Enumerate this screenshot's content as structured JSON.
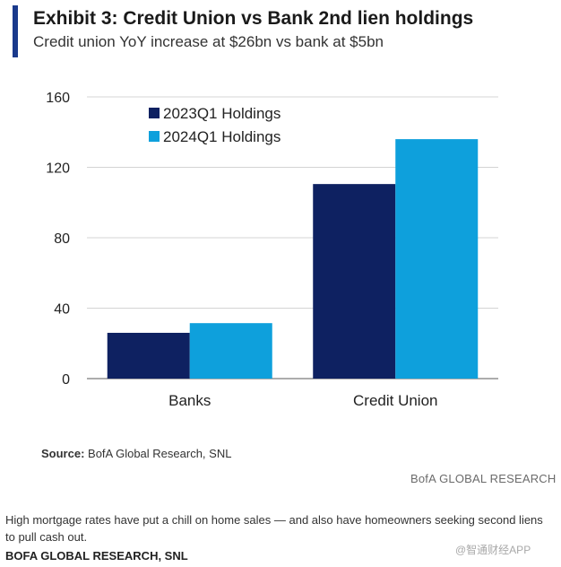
{
  "header": {
    "title": "Exhibit 3: Credit Union vs Bank 2nd lien holdings",
    "subtitle": "Credit union YoY increase at $26bn vs bank at $5bn"
  },
  "chart_data": {
    "type": "bar",
    "categories": [
      "Banks",
      "Credit Union"
    ],
    "series": [
      {
        "name": "2023Q1 Holdings",
        "values": [
          26,
          110.5
        ],
        "color": "#0e2161"
      },
      {
        "name": "2024Q1 Holdings",
        "values": [
          31.5,
          136
        ],
        "color": "#0ea0dc"
      }
    ],
    "yticks": [
      0,
      40,
      80,
      120,
      160
    ],
    "ylim": [
      0,
      160
    ],
    "grid": true,
    "legend": "top-left"
  },
  "footer": {
    "source_label": "Source:",
    "source_text": " BofA Global Research, SNL",
    "brand": "BofA GLOBAL RESEARCH"
  },
  "caption": {
    "text": "High mortgage rates have put a chill on home sales — and also have homeowners seeking second liens to pull cash out.",
    "credit": "BOFA GLOBAL RESEARCH, SNL"
  },
  "watermark": "@智通财经APP"
}
